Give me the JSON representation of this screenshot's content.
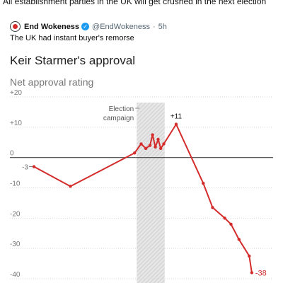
{
  "caption": "All establishment parties in the UK will get crushed in the next election",
  "tweet": {
    "author": "End Wokeness",
    "handle": "@EndWokeness",
    "time": "5h",
    "text": "The UK had instant buyer's remorse",
    "verified_icon": "check-badge-icon"
  },
  "colors": {
    "line": "#d42b2b",
    "marker": "#d42b2b",
    "band": "#dedede",
    "zero_line": "#444444"
  },
  "chart_data": {
    "type": "line",
    "title": "Keir Starmer's approval",
    "subtitle": "Net approval rating",
    "yticks": [
      {
        "value": 20,
        "label": "+20"
      },
      {
        "value": 10,
        "label": "+10"
      },
      {
        "value": 0,
        "label": "0"
      },
      {
        "value": -10,
        "label": "-10"
      },
      {
        "value": -20,
        "label": "-20"
      },
      {
        "value": -30,
        "label": "-30"
      },
      {
        "value": -40,
        "label": "-40"
      }
    ],
    "ylim": [
      -40,
      20
    ],
    "grid": true,
    "annotation_band": {
      "label_line1": "Election",
      "label_line2": "campaign",
      "x_start": 0.44,
      "x_end": 0.56
    },
    "series": [
      {
        "points": [
          {
            "x": 0.0,
            "y": -3
          },
          {
            "x": 0.156,
            "y": -9.5
          },
          {
            "x": 0.431,
            "y": 1.5
          },
          {
            "x": 0.459,
            "y": 4.5
          },
          {
            "x": 0.479,
            "y": 3
          },
          {
            "x": 0.497,
            "y": 4
          },
          {
            "x": 0.508,
            "y": 7.5
          },
          {
            "x": 0.52,
            "y": 3.5
          },
          {
            "x": 0.532,
            "y": 6
          },
          {
            "x": 0.543,
            "y": 3
          },
          {
            "x": 0.556,
            "y": 4.5
          },
          {
            "x": 0.609,
            "y": 11
          },
          {
            "x": 0.725,
            "y": -8.5
          },
          {
            "x": 0.765,
            "y": -16.5
          },
          {
            "x": 0.817,
            "y": -20
          },
          {
            "x": 0.844,
            "y": -22
          },
          {
            "x": 0.878,
            "y": -27
          },
          {
            "x": 0.922,
            "y": -32.5
          },
          {
            "x": 0.933,
            "y": -38
          }
        ]
      }
    ],
    "labels": {
      "start": "-3",
      "peak": "+11",
      "end": "-38"
    }
  }
}
